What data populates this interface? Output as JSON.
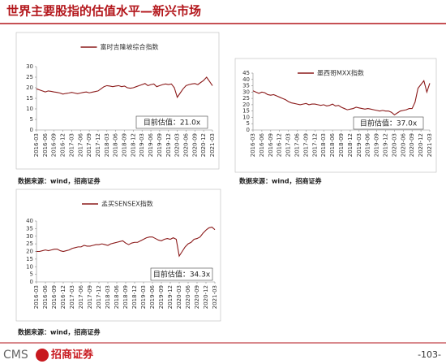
{
  "header": {
    "title": "世界主要股指的估值水平—新兴市场"
  },
  "chart_data": [
    {
      "type": "line",
      "categories": [
        "2016-03",
        null,
        null,
        "2016-06",
        null,
        null,
        "2016-09",
        null,
        null,
        "2016-12",
        null,
        null,
        "2017-03",
        null,
        null,
        "2017-06",
        null,
        null,
        "2017-09",
        null,
        null,
        "2017-12",
        null,
        null,
        "2018-03",
        null,
        null,
        "2018-06",
        null,
        null,
        "2018-09",
        null,
        null,
        "2018-12",
        null,
        null,
        "2019-03",
        null,
        null,
        "2019-06",
        null,
        null,
        "2019-09",
        null,
        null,
        "2019-12",
        null,
        null,
        "2020-03",
        null,
        null,
        "2020-06",
        null,
        null,
        "2020-09",
        null,
        null,
        "2020-12",
        null,
        null,
        "2021-03"
      ],
      "series": [
        {
          "name": "富时吉隆坡综合指数",
          "color": "#8b1a1a",
          "values": [
            19.5,
            19,
            18.5,
            18,
            18.5,
            18.3,
            18,
            17.8,
            17.5,
            17,
            17.3,
            17.5,
            17.8,
            17.5,
            17.2,
            17.5,
            17.8,
            18,
            17.6,
            17.9,
            18.2,
            18.5,
            19.5,
            20.5,
            21,
            20.8,
            20.5,
            20.8,
            21,
            20.5,
            20.8,
            20,
            19.8,
            20,
            20.5,
            21,
            21.5,
            22,
            21,
            21.5,
            21.8,
            20.5,
            21,
            21.5,
            21.8,
            21.5,
            21.8,
            20,
            15.5,
            17.5,
            19.5,
            21,
            21.5,
            21.8,
            22,
            21.5,
            22.5,
            23.5,
            25,
            23,
            21
          ]
        }
      ],
      "ylim": [
        0,
        30
      ],
      "yticks": [
        0,
        5,
        10,
        15,
        20,
        25,
        30
      ],
      "annotation": "目前估值：21.0x"
    },
    {
      "type": "line",
      "categories": [
        "2016-03",
        null,
        null,
        "2016-06",
        null,
        null,
        "2016-09",
        null,
        null,
        "2016-12",
        null,
        null,
        "2017-03",
        null,
        null,
        "2017-06",
        null,
        null,
        "2017-09",
        null,
        null,
        "2017-12",
        null,
        null,
        "2018-03",
        null,
        null,
        "2018-06",
        null,
        null,
        "2018-09",
        null,
        null,
        "2018-12",
        null,
        null,
        "2019-03",
        null,
        null,
        "2019-06",
        null,
        null,
        "2019-09",
        null,
        null,
        "2019-12",
        null,
        null,
        "2020-03",
        null,
        null,
        "2020-06",
        null,
        null,
        "2020-09",
        null,
        null,
        "2020-12",
        null,
        null,
        "2021-03"
      ],
      "series": [
        {
          "name": "墨西哥MXX指数",
          "color": "#8b1a1a",
          "values": [
            31,
            30,
            29,
            30,
            29.5,
            28,
            27.5,
            28,
            27,
            26,
            25,
            24,
            22.5,
            21.5,
            21,
            20.5,
            20,
            20.5,
            21,
            20,
            20.5,
            20.5,
            20,
            19.5,
            20,
            19,
            19.5,
            20.5,
            19,
            19.5,
            18,
            17,
            16,
            16.5,
            17,
            18,
            17.5,
            17,
            16.5,
            17,
            16.5,
            16,
            15.5,
            15,
            15.5,
            15,
            15,
            14,
            12,
            13.5,
            15,
            15.5,
            16,
            17,
            17,
            22,
            33,
            36,
            39,
            30,
            37
          ]
        }
      ],
      "ylim": [
        0,
        45
      ],
      "yticks": [
        0,
        5,
        10,
        15,
        20,
        25,
        30,
        35,
        40,
        45
      ],
      "annotation": "目前估值：37.0x"
    },
    {
      "type": "line",
      "categories": [
        "2016-03",
        null,
        null,
        "2016-06",
        null,
        null,
        "2016-09",
        null,
        null,
        "2016-12",
        null,
        null,
        "2017-03",
        null,
        null,
        "2017-06",
        null,
        null,
        "2017-09",
        null,
        null,
        "2017-12",
        null,
        null,
        "2018-03",
        null,
        null,
        "2018-06",
        null,
        null,
        "2018-09",
        null,
        null,
        "2018-12",
        null,
        null,
        "2019-03",
        null,
        null,
        "2019-06",
        null,
        null,
        "2019-09",
        null,
        null,
        "2019-12",
        null,
        null,
        "2020-03",
        null,
        null,
        "2020-06",
        null,
        null,
        "2020-09",
        null,
        null,
        "2020-12",
        null,
        null,
        "2021-03"
      ],
      "series": [
        {
          "name": "孟买SENSEX指数",
          "color": "#8b1a1a",
          "values": [
            20,
            20,
            20.5,
            21,
            20.5,
            21,
            21.5,
            21.5,
            20.5,
            20,
            20.5,
            21,
            22,
            22.5,
            23,
            23,
            24,
            23.5,
            23.5,
            24,
            24.5,
            24.5,
            25,
            24.5,
            24,
            25,
            25.5,
            26,
            26.5,
            27,
            25.5,
            24.5,
            25.5,
            26,
            26,
            27,
            28,
            29,
            29.5,
            29.5,
            28.5,
            27.5,
            27,
            28,
            28.5,
            28,
            29,
            28,
            17,
            20,
            23,
            25,
            26,
            28,
            28.5,
            29.5,
            32,
            34,
            35.5,
            36,
            34.3
          ]
        }
      ],
      "ylim": [
        0,
        40
      ],
      "yticks": [
        0,
        5,
        10,
        15,
        20,
        25,
        30,
        35,
        40
      ],
      "annotation": "目前估值：34.3x"
    }
  ],
  "sources": [
    "数据来源：wind，招商证券",
    "数据来源：wind，招商证券",
    "数据来源：wind，招商证券"
  ],
  "footer": {
    "brand": "CMS",
    "company": "招商证券",
    "page": "-103-"
  }
}
